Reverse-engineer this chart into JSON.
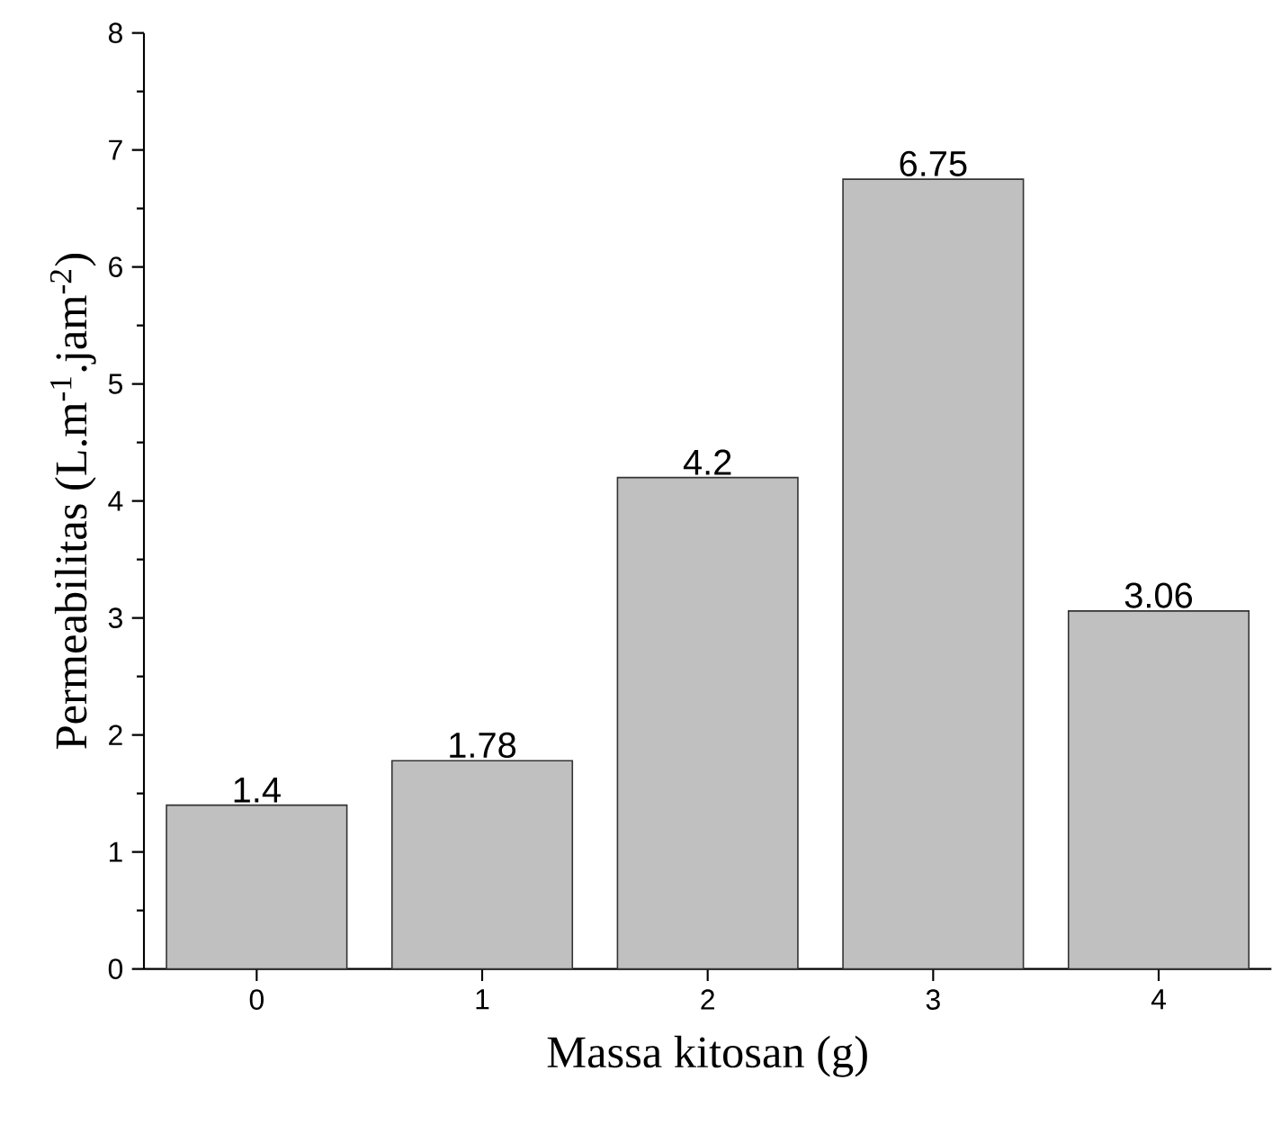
{
  "chart_data": {
    "type": "bar",
    "xlabel": "Massa kitosan (g)",
    "ylabel": "Permeabilitas (L.m$^{-1}$.jam$^{-2}$)",
    "categories": [
      "0",
      "1",
      "2",
      "3",
      "4"
    ],
    "values": [
      1.4,
      1.78,
      4.2,
      6.75,
      3.06
    ],
    "color": "#c0c0c0",
    "ylim": [
      0,
      8
    ],
    "yticks": [
      0,
      1,
      2,
      3,
      4,
      5,
      6,
      7,
      8
    ],
    "data_labels": true
  }
}
